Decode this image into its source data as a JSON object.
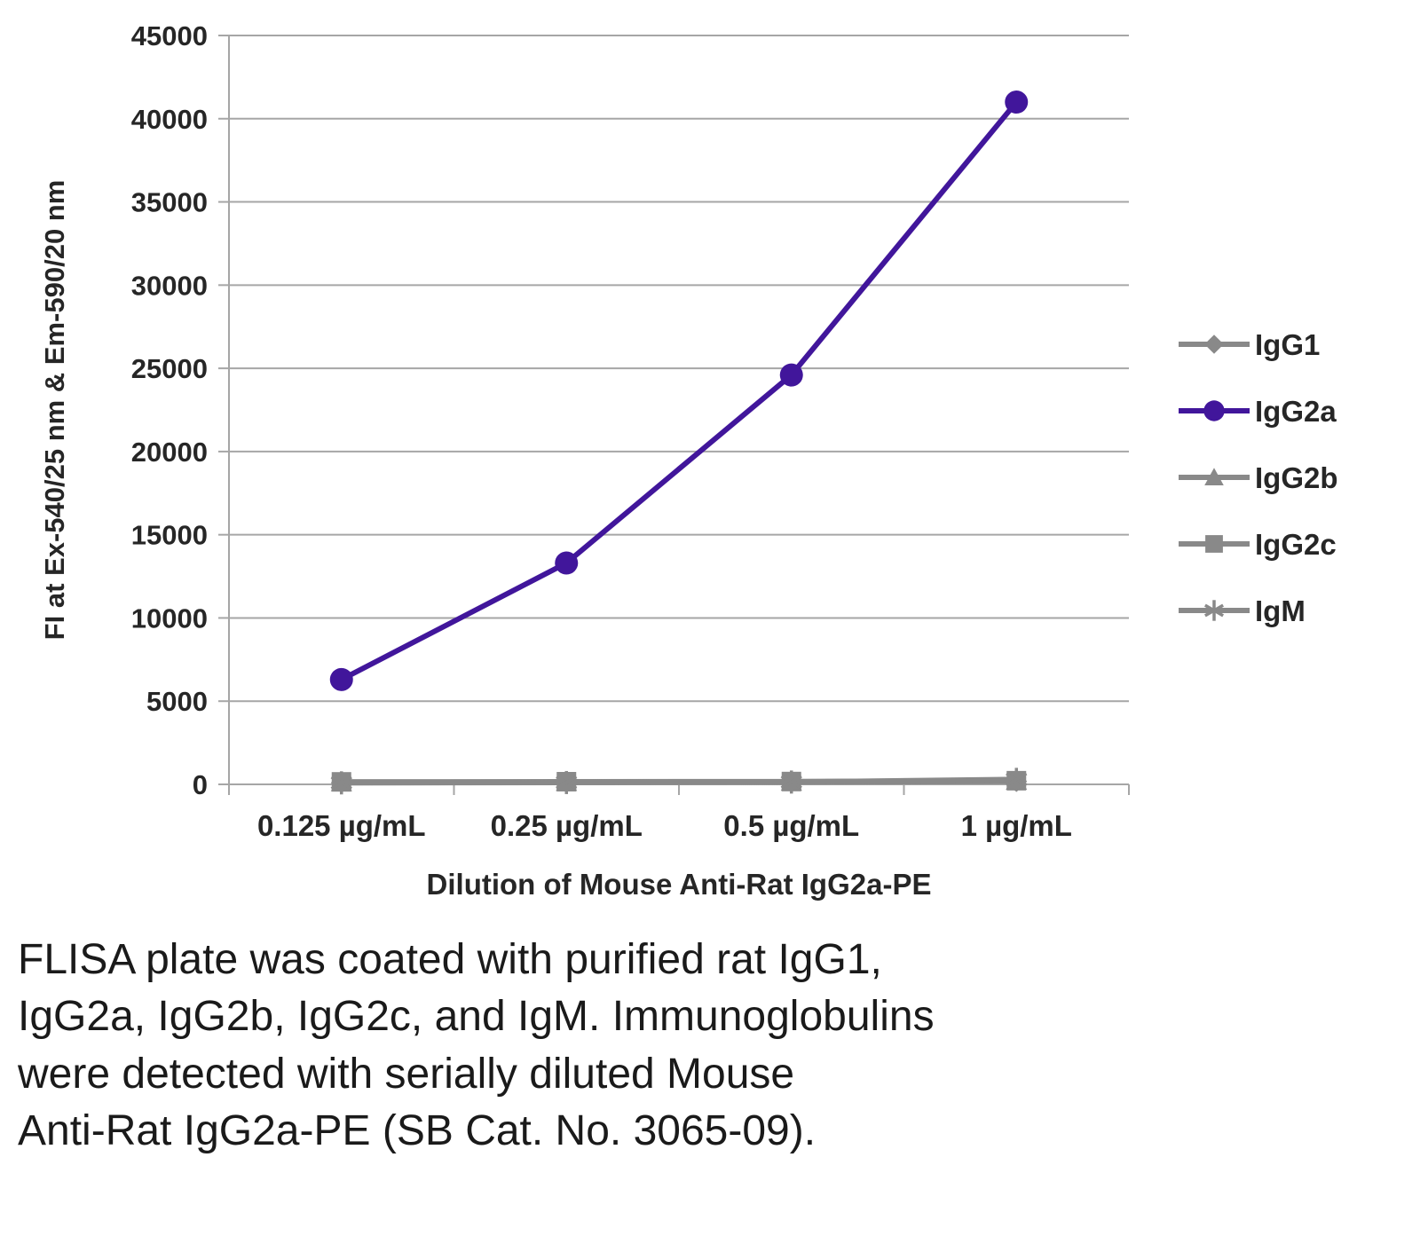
{
  "chart_data": {
    "type": "line",
    "title": "",
    "categories": [
      "0.125 µg/mL",
      "0.25 µg/mL",
      "0.5 µg/mL",
      "1 µg/mL"
    ],
    "series": [
      {
        "name": "IgG1",
        "color": "#898989",
        "marker": "diamond",
        "values": [
          100,
          120,
          130,
          180
        ]
      },
      {
        "name": "IgG2a",
        "color": "#41169b",
        "marker": "circle",
        "values": [
          6300,
          13300,
          24600,
          41000
        ]
      },
      {
        "name": "IgG2b",
        "color": "#898989",
        "marker": "triangle",
        "values": [
          120,
          140,
          150,
          210
        ]
      },
      {
        "name": "IgG2c",
        "color": "#898989",
        "marker": "square",
        "values": [
          150,
          160,
          170,
          220
        ]
      },
      {
        "name": "IgM",
        "color": "#898989",
        "marker": "asterisk",
        "values": [
          90,
          110,
          140,
          300
        ]
      }
    ],
    "xlabel": "Dilution of Mouse Anti-Rat IgG2a-PE",
    "ylabel": "FI at Ex-540/25 nm & Em-590/20 nm",
    "ylim": [
      0,
      45000
    ],
    "ytick_step": 5000,
    "grid": true,
    "legend_position": "right",
    "axis_color": "#a6a6a6",
    "text_color": "#262626"
  },
  "caption": {
    "lines": [
      "FLISA plate was coated with purified rat IgG1,",
      "IgG2a, IgG2b, IgG2c, and IgM.  Immunoglobulins",
      "were detected with serially diluted Mouse",
      "Anti-Rat IgG2a-PE (SB Cat. No. 3065-09)."
    ]
  }
}
